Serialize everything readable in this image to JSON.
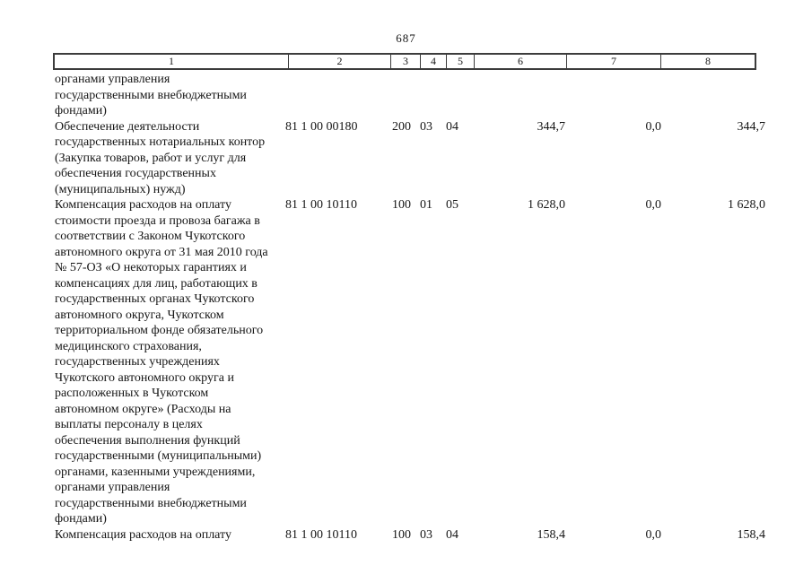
{
  "page": {
    "number": "687"
  },
  "table": {
    "column_headers": [
      "1",
      "2",
      "3",
      "4",
      "5",
      "6",
      "7",
      "8"
    ],
    "rows": [
      {
        "name": "органами управления\nгосударственными внебюджетными\nфондами)",
        "code": "",
        "col3": "",
        "col4": "",
        "col5": "",
        "col6": "",
        "col7": "",
        "col8": ""
      },
      {
        "name": "Обеспечение деятельности\nгосударственных нотариальных контор\n(Закупка товаров, работ и услуг для\nобеспечения государственных\n(муниципальных) нужд)",
        "code": "81 1 00 00180",
        "col3": "200",
        "col4": "03",
        "col5": "04",
        "col6": "344,7",
        "col7": "0,0",
        "col8": "344,7"
      },
      {
        "name": "Компенсация расходов на оплату\nстоимости проезда и провоза багажа в\nсоответствии с Законом Чукотского\nавтономного округа от 31 мая 2010 года\n№ 57-ОЗ «О некоторых гарантиях и\nкомпенсациях для лиц, работающих в\nгосударственных органах Чукотского\nавтономного округа, Чукотском\nтерриториальном фонде обязательного\nмедицинского страхования,\nгосударственных учреждениях\nЧукотского автономного округа и\nрасположенных в Чукотском\nавтономном округе» (Расходы на\nвыплаты персоналу в целях\nобеспечения выполнения функций\nгосударственными (муниципальными)\nорганами, казенными учреждениями,\nорганами управления\nгосударственными внебюджетными\nфондами)",
        "code": "81 1 00 10110",
        "col3": "100",
        "col4": "01",
        "col5": "05",
        "col6": "1 628,0",
        "col7": "0,0",
        "col8": "1 628,0"
      },
      {
        "name": "Компенсация расходов на оплату",
        "code": "81 1 00 10110",
        "col3": "100",
        "col4": "03",
        "col5": "04",
        "col6": "158,4",
        "col7": "0,0",
        "col8": "158,4"
      }
    ]
  },
  "colors": {
    "text": "#161616",
    "border": "#3c3c3c",
    "background": "#ffffff"
  }
}
